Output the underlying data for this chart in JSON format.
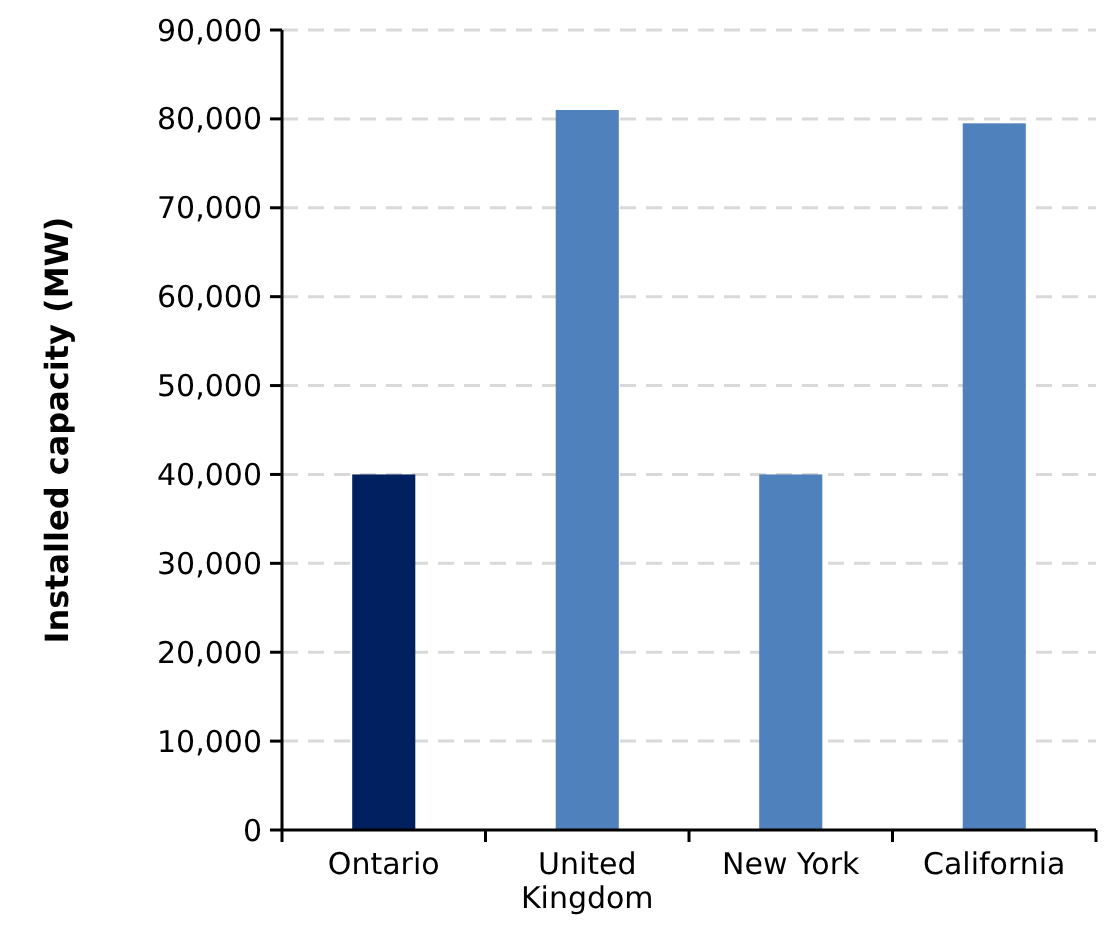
{
  "chart_data": {
    "type": "bar",
    "ylabel": "Installed capacity (MW)",
    "categories": [
      "Ontario",
      "United Kingdom",
      "New York",
      "California"
    ],
    "values": [
      40000,
      81000,
      40000,
      79500
    ],
    "colors": [
      "#002060",
      "#4f81bd",
      "#4f81bd",
      "#4f81bd"
    ],
    "ylim": [
      0,
      90000
    ],
    "yticks": [
      {
        "value": 0,
        "label": "0"
      },
      {
        "value": 10000,
        "label": "10,000"
      },
      {
        "value": 20000,
        "label": "20,000"
      },
      {
        "value": 30000,
        "label": "30,000"
      },
      {
        "value": 40000,
        "label": "40,000"
      },
      {
        "value": 50000,
        "label": "50,000"
      },
      {
        "value": 60000,
        "label": "60,000"
      },
      {
        "value": 70000,
        "label": "70,000"
      },
      {
        "value": 80000,
        "label": "80,000"
      },
      {
        "value": 90000,
        "label": "90,000"
      }
    ],
    "grid": "y"
  }
}
